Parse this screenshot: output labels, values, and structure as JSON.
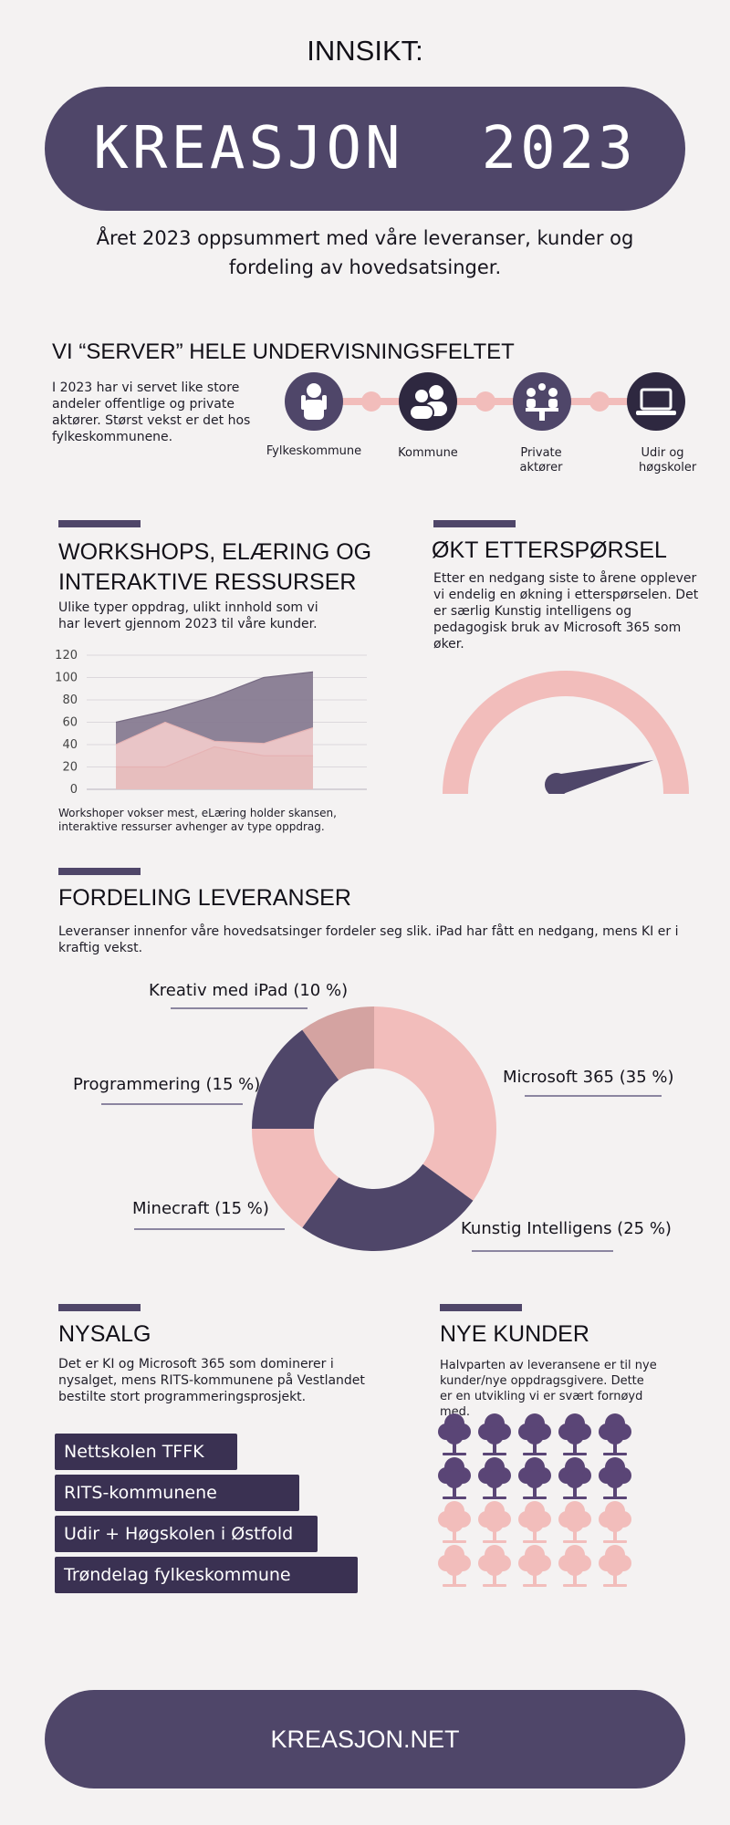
{
  "header": {
    "kicker": "INNSIKT:",
    "title": "KREASJON  2023",
    "intro_line1": "Året 2023 oppsummert med våre leveranser, kunder og",
    "intro_line2": "fordeling av hovedsatsinger."
  },
  "serves": {
    "title": "VI “SERVER” HELE UNDERVISNINGSFELTET",
    "text": "I 2023 har vi servet like store andeler offentlige og private aktører. Størst vekst er det hos fylkeskommunene.",
    "nodes": [
      {
        "label": "Fylkeskommune",
        "icon": "person-icon",
        "color": "#4f4669"
      },
      {
        "label": "Kommune",
        "icon": "people-icon",
        "color": "#2e2840"
      },
      {
        "label": "Private aktører",
        "icon": "meeting-icon",
        "color": "#4f4669"
      },
      {
        "label": "Udir og høgskoler",
        "icon": "laptop-icon",
        "color": "#2e2840"
      }
    ]
  },
  "workshops": {
    "title_line1": "WORKSHOPS, ELÆRING OG",
    "title_line2": "INTERAKTIVE RESSURSER",
    "text": "Ulike typer oppdrag, ulikt innhold som vi har levert gjennom 2023 til våre kunder.",
    "caption": "Workshoper vokser mest, eLæring holder skansen, interaktive ressurser avhenger av type oppdrag."
  },
  "chart_data": {
    "type": "area",
    "x": [
      1,
      2,
      3,
      4,
      5
    ],
    "ylim": [
      0,
      120
    ],
    "yticks": [
      "0",
      "20",
      "40",
      "60",
      "80",
      "100",
      "120"
    ],
    "series": [
      {
        "values": [
          60,
          70,
          83,
          100,
          105
        ],
        "color": "#877b91"
      },
      {
        "values": [
          40,
          60,
          43,
          41,
          55
        ],
        "color": "#f3cccc"
      },
      {
        "values": [
          20,
          20,
          38,
          30,
          30
        ],
        "color": "#e7bcbc"
      }
    ],
    "grid": true
  },
  "demand": {
    "title": "ØKT ETTERSPØRSEL",
    "text": "Etter en nedgang siste to årene opplever vi endelig en økning i etterspørselen. Det er særlig Kunstig intelligens og pedagogisk bruk av Microsoft 365 som øker.",
    "gauge_level": 0.83
  },
  "distribution": {
    "title": "FORDELING LEVERANSER",
    "text": "Leveranser innenfor våre hovedsatsinger fordeler seg slik. iPad har fått en nedgang, mens KI er i kraftig vekst.",
    "slices": [
      {
        "label": "Microsoft 365 (35 %)",
        "value": 35,
        "color": "#f2bdbb"
      },
      {
        "label": "Kunstig Intelligens (25 %)",
        "value": 25,
        "color": "#4f4669"
      },
      {
        "label": "Minecraft (15 %)",
        "value": 15,
        "color": "#f2bdbb"
      },
      {
        "label": "Programmering (15 %)",
        "value": 15,
        "color": "#4f4669"
      },
      {
        "label": "Kreativ med iPad (10 %)",
        "value": 10,
        "color": "#d4a3a1"
      }
    ]
  },
  "sales": {
    "title": "NYSALG",
    "text": "Det er KI og Microsoft 365 som dominerer i nysalget, mens RITS-kommunene på Vestlandet bestilte stort programmeringsprosjekt.",
    "clients": [
      {
        "label": "Nettskolen TFFK",
        "share": 0.5
      },
      {
        "label": "RITS-kommunene",
        "share": 0.67
      },
      {
        "label": "Udir + Høgskolen i Østfold",
        "share": 0.72
      },
      {
        "label": "Trøndelag fylkeskommune",
        "share": 0.83
      }
    ]
  },
  "new_customers": {
    "title": "NYE KUNDER",
    "text": "Halvparten av leveransene er til nye kunder/nye oppdragsgivere. Dette er en utvikling vi er svært fornøyd med.",
    "total": 20,
    "highlighted": 10,
    "colors": {
      "new": "#5a4576",
      "existing": "#f2bdbb"
    }
  },
  "footer": {
    "url": "KREASJON.NET"
  }
}
